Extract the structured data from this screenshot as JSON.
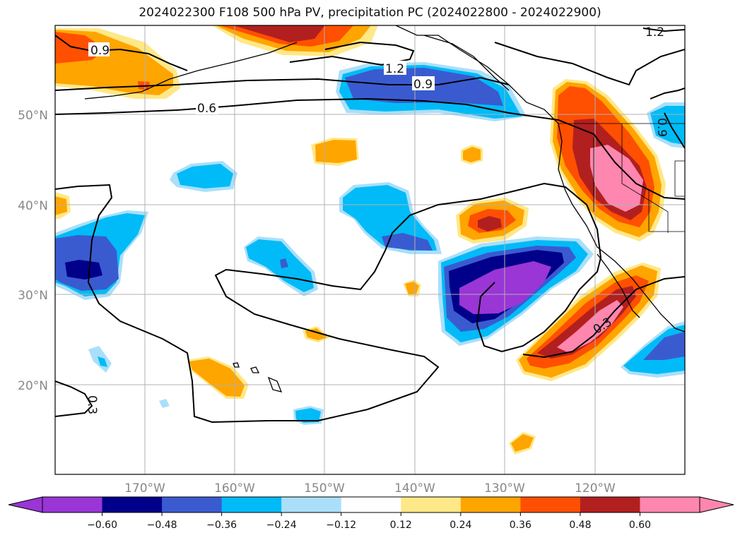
{
  "title": "2024022300 F108 500 hPa PV, precipitation PC (2024022800 - 2024022900)",
  "map": {
    "lat_ticks": [
      "50°N",
      "40°N",
      "30°N",
      "20°N"
    ],
    "lon_ticks": [
      "170°W",
      "160°W",
      "150°W",
      "140°W",
      "130°W",
      "120°W"
    ],
    "grid": true,
    "contour_labels": [
      "0.9",
      "1.2",
      "0.9",
      "0.6",
      "1.2",
      "0.3",
      "0.3",
      "0.9"
    ]
  },
  "colorbar": {
    "ticks": [
      "−0.60",
      "−0.48",
      "−0.36",
      "−0.24",
      "−0.12",
      "0.12",
      "0.24",
      "0.36",
      "0.48",
      "0.60"
    ],
    "colors": [
      "#9a35d6",
      "#01008a",
      "#3a5bd0",
      "#00bbf7",
      "#aadffa",
      "#ffffff",
      "#ffe887",
      "#ffa500",
      "#ff4f00",
      "#b21f1f",
      "#ff86ae"
    ],
    "extend": "both"
  }
}
